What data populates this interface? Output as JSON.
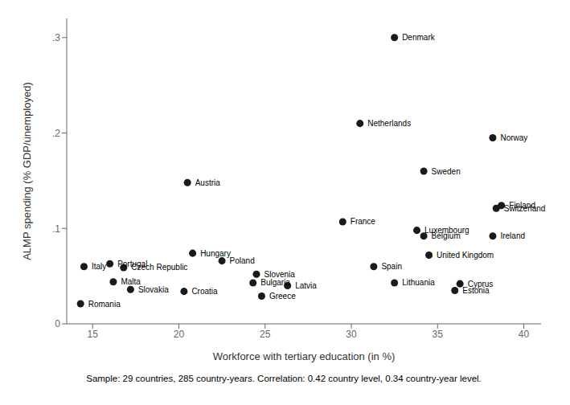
{
  "chart_data": {
    "type": "scatter",
    "xlabel": "Workforce with tertiary education (in %)",
    "ylabel": "ALMP spending (% GDP/unemployed)",
    "caption": "Sample: 29 countries, 285 country-years. Correlation: 0.42 country level, 0.34 country-year level.",
    "points": [
      {
        "label": "Denmark",
        "x": 32.5,
        "y": 0.3
      },
      {
        "label": "Netherlands",
        "x": 30.5,
        "y": 0.21
      },
      {
        "label": "Norway",
        "x": 38.2,
        "y": 0.195
      },
      {
        "label": "Sweden",
        "x": 34.2,
        "y": 0.16
      },
      {
        "label": "Austria",
        "x": 20.5,
        "y": 0.148
      },
      {
        "label": "Finland",
        "x": 38.7,
        "y": 0.124
      },
      {
        "label": "Switzerland",
        "x": 38.4,
        "y": 0.121
      },
      {
        "label": "France",
        "x": 29.5,
        "y": 0.107
      },
      {
        "label": "Luxembourg",
        "x": 33.8,
        "y": 0.098
      },
      {
        "label": "Belgium",
        "x": 34.2,
        "y": 0.092
      },
      {
        "label": "Ireland",
        "x": 38.2,
        "y": 0.092
      },
      {
        "label": "Hungary",
        "x": 20.8,
        "y": 0.074
      },
      {
        "label": "United Kingdom",
        "x": 34.5,
        "y": 0.072
      },
      {
        "label": "Poland",
        "x": 22.5,
        "y": 0.066
      },
      {
        "label": "Italy",
        "x": 14.5,
        "y": 0.06
      },
      {
        "label": "Portugal",
        "x": 16.0,
        "y": 0.063
      },
      {
        "label": "Czech Republic",
        "x": 16.8,
        "y": 0.059
      },
      {
        "label": "Spain",
        "x": 31.3,
        "y": 0.06
      },
      {
        "label": "Slovenia",
        "x": 24.5,
        "y": 0.052
      },
      {
        "label": "Malta",
        "x": 16.2,
        "y": 0.044
      },
      {
        "label": "Slovakia",
        "x": 17.2,
        "y": 0.036
      },
      {
        "label": "Bulgaria",
        "x": 24.3,
        "y": 0.043
      },
      {
        "label": "Latvia",
        "x": 26.3,
        "y": 0.04
      },
      {
        "label": "Lithuania",
        "x": 32.5,
        "y": 0.043
      },
      {
        "label": "Croatia",
        "x": 20.3,
        "y": 0.034
      },
      {
        "label": "Greece",
        "x": 24.8,
        "y": 0.029
      },
      {
        "label": "Cyprus",
        "x": 36.3,
        "y": 0.042
      },
      {
        "label": "Estonia",
        "x": 36.0,
        "y": 0.035
      },
      {
        "label": "Romania",
        "x": 14.3,
        "y": 0.021
      }
    ],
    "color": "#1a1a1a",
    "xlim": [
      13.5,
      41.0
    ],
    "ylim": [
      0,
      0.32
    ],
    "xticks": [
      15,
      20,
      25,
      30,
      35,
      40
    ],
    "yticks": [
      0,
      {
        "value": 0.1,
        "label": ".1"
      },
      {
        "value": 0.2,
        "label": ".2"
      },
      {
        "value": 0.3,
        "label": ".3"
      }
    ],
    "grid": false
  }
}
